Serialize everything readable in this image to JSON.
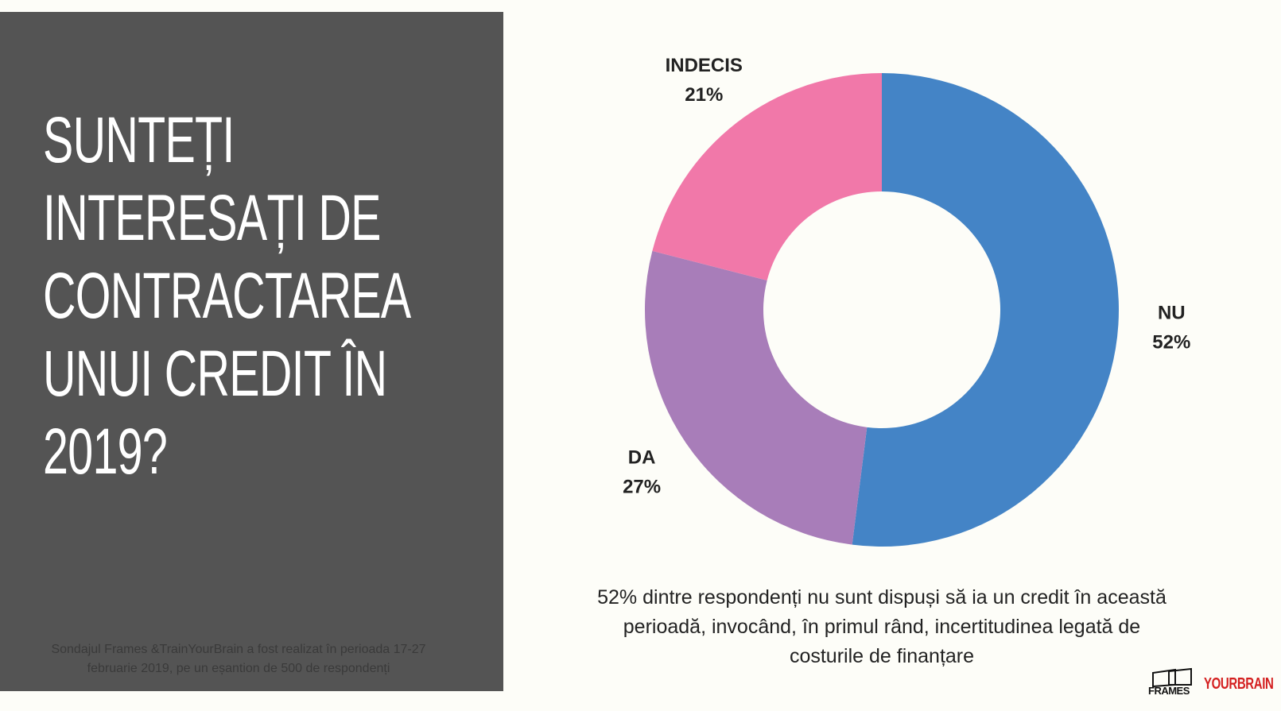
{
  "chart_data": {
    "type": "pie",
    "title": "SUNTEȚI INTERESAȚI DE CONTRACTAREA UNUI CREDIT ÎN 2019?",
    "categories": [
      "NU",
      "DA",
      "INDECIS"
    ],
    "values": [
      52,
      27,
      21
    ],
    "value_labels": [
      "52%",
      "27%",
      "21%"
    ],
    "colors": [
      "#4484c6",
      "#a87db9",
      "#f178a9"
    ],
    "donut": true
  },
  "caption": "52% dintre respondenți nu sunt dispuși să ia un credit în această perioadă, invocând, în primul rând, incertitudinea legată de costurile de finanțare",
  "footnote": "Sondajul Frames &TrainYourBrain a fost realizat în perioada 17-27 februarie 2019, pe un eșantion de 500 de respondenți",
  "logos": [
    "FRAMES",
    "YOURBRAIN"
  ]
}
